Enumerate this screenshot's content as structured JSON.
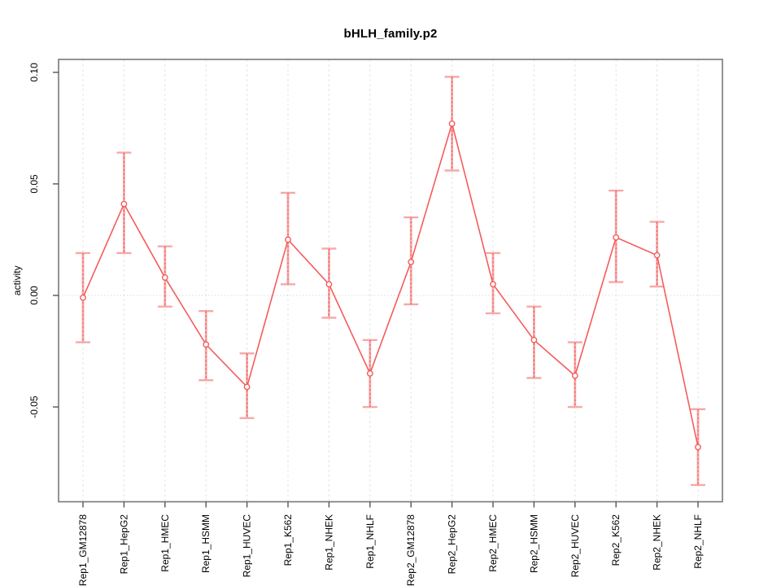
{
  "title": "bHLH_family.p2",
  "chart_data": {
    "type": "line",
    "title": "bHLH_family.p2",
    "xlabel": "",
    "ylabel": "activity",
    "legend_position": "none",
    "grid": {
      "vertical_dashed_per_category": true,
      "horizontal_dotted_zero_line": true
    },
    "ylim": [
      -0.0925,
      0.1058
    ],
    "yticks": [
      0.1,
      0.05,
      0.0,
      -0.05
    ],
    "ytick_labels": [
      "0.10",
      "0.05",
      "0.00",
      "-0.05"
    ],
    "categories": [
      "Rep1_GM12878",
      "Rep1_HepG2",
      "Rep1_HMEC",
      "Rep1_HSMM",
      "Rep1_HUVEC",
      "Rep1_K562",
      "Rep1_NHEK",
      "Rep1_NHLF",
      "Rep2_GM12878",
      "Rep2_HepG2",
      "Rep2_HMEC",
      "Rep2_HSMM",
      "Rep2_HUVEC",
      "Rep2_K562",
      "Rep2_NHEK",
      "Rep2_NHLF"
    ],
    "series": [
      {
        "name": "activity",
        "marker": "open-circle",
        "values": [
          -0.001,
          0.041,
          0.008,
          -0.022,
          -0.041,
          0.025,
          0.005,
          -0.035,
          0.015,
          0.077,
          0.005,
          -0.02,
          -0.036,
          0.026,
          0.018,
          -0.068
        ],
        "error_upper": [
          0.019,
          0.064,
          0.022,
          -0.007,
          -0.026,
          0.046,
          0.021,
          -0.02,
          0.035,
          0.098,
          0.019,
          -0.005,
          -0.021,
          0.047,
          0.033,
          -0.051
        ],
        "error_lower": [
          -0.021,
          0.019,
          -0.005,
          -0.038,
          -0.055,
          0.005,
          -0.01,
          -0.05,
          -0.004,
          0.056,
          -0.008,
          -0.037,
          -0.05,
          0.006,
          0.004,
          -0.085
        ]
      }
    ],
    "colors": {
      "series": "#f45c5c",
      "error_bar": "#f7a8a8",
      "error_dash": "#f25757",
      "grid": "#e4e4e4",
      "zero_line": "#d9d9d9",
      "box": "#787878",
      "tick": "#555555",
      "text": "#000000"
    }
  }
}
